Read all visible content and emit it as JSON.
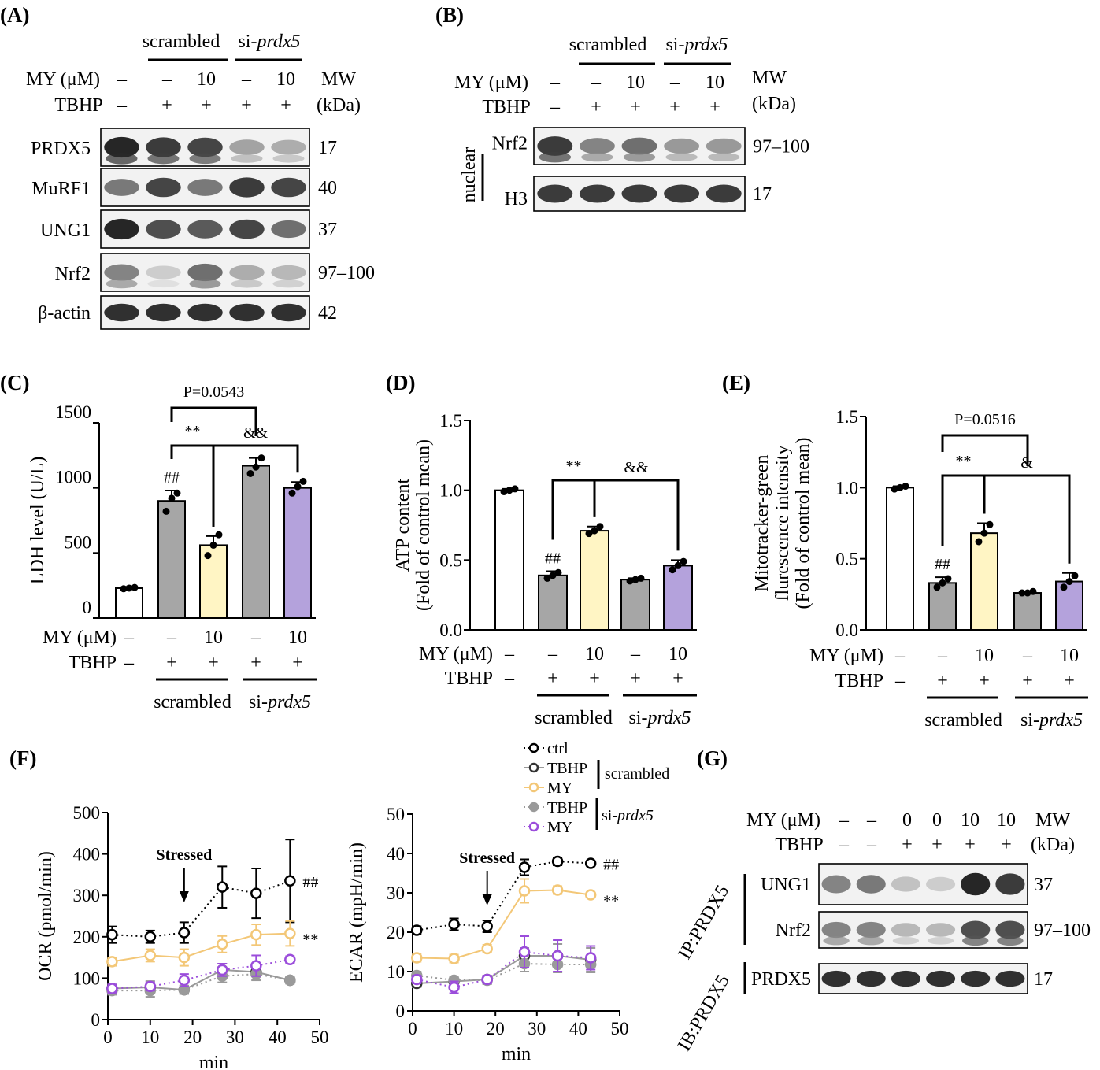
{
  "panels": {
    "A": {
      "label": "(A)",
      "groups": [
        "scrambled",
        "si-prdx5"
      ],
      "row_my_label": "MY (μM)",
      "row_my": [
        "–",
        "–",
        "10",
        "–",
        "10"
      ],
      "row_tbhp_label": "TBHP",
      "row_tbhp": [
        "–",
        "+",
        "+",
        "+",
        "+"
      ],
      "mw_header": [
        "MW",
        "(kDa)"
      ],
      "blots": [
        {
          "name": "PRDX5",
          "mw": "17",
          "intensity": [
            0.95,
            0.85,
            0.8,
            0.35,
            0.3
          ]
        },
        {
          "name": "MuRF1",
          "mw": "40",
          "intensity": [
            0.55,
            0.8,
            0.55,
            0.85,
            0.8
          ]
        },
        {
          "name": "UNG1",
          "mw": "37",
          "intensity": [
            0.95,
            0.75,
            0.7,
            0.8,
            0.6
          ]
        },
        {
          "name": "Nrf2",
          "mw": "97–100",
          "intensity": [
            0.5,
            0.15,
            0.6,
            0.3,
            0.25
          ]
        },
        {
          "name": "β-actin",
          "mw": "42",
          "intensity": [
            0.9,
            0.9,
            0.9,
            0.9,
            0.9
          ]
        }
      ]
    },
    "B": {
      "label": "(B)",
      "groups": [
        "scrambled",
        "si-prdx5"
      ],
      "row_my_label": "MY (μM)",
      "row_my": [
        "–",
        "–",
        "10",
        "–",
        "10"
      ],
      "row_tbhp_label": "TBHP",
      "row_tbhp": [
        "–",
        "+",
        "+",
        "+",
        "+"
      ],
      "mw_header": [
        "MW",
        "(kDa)"
      ],
      "fraction_label": "nuclear",
      "blots": [
        {
          "name": "Nrf2",
          "mw": "97–100",
          "intensity": [
            0.85,
            0.5,
            0.6,
            0.4,
            0.4
          ]
        },
        {
          "name": "H3",
          "mw": "17",
          "intensity": [
            0.85,
            0.85,
            0.85,
            0.85,
            0.85
          ]
        }
      ]
    },
    "G": {
      "label": "(G)",
      "row_my_label": "MY (μM)",
      "row_my": [
        "–",
        "–",
        "0",
        "0",
        "10",
        "10"
      ],
      "row_tbhp_label": "TBHP",
      "row_tbhp": [
        "–",
        "–",
        "+",
        "+",
        "+",
        "+"
      ],
      "mw_header": [
        "MW",
        "(kDa)"
      ],
      "ip_label": "IP:PRDX5",
      "ib_label": "IB:PRDX5",
      "blots": [
        {
          "name": "UNG1",
          "mw": "37",
          "intensity": [
            0.5,
            0.55,
            0.2,
            0.15,
            0.95,
            0.85
          ]
        },
        {
          "name": "Nrf2",
          "mw": "97–100",
          "intensity": [
            0.5,
            0.5,
            0.25,
            0.25,
            0.75,
            0.75
          ]
        },
        {
          "name": "PRDX5",
          "mw": "17",
          "intensity": [
            0.9,
            0.9,
            0.9,
            0.9,
            0.9,
            0.9
          ]
        }
      ]
    }
  },
  "bar_conditions": {
    "my_label": "MY (μM)",
    "my": [
      "–",
      "–",
      "10",
      "–",
      "10"
    ],
    "tbhp_label": "TBHP",
    "tbhp": [
      "–",
      "+",
      "+",
      "+",
      "+"
    ],
    "groups": [
      "scrambled",
      "si-prdx5"
    ],
    "group_prefix": "si-",
    "group_italic": "prdx5"
  },
  "colors": {
    "ctrl": "#ffffff",
    "tbhp": "#a6a6a6",
    "my": "#fff5c4",
    "si_tbhp": "#a6a6a6",
    "si_my": "#b4a2dc",
    "line_my": "#f3c777",
    "line_si_my": "#9b4ddb",
    "line_si_tbhp": "#9a9a9a"
  },
  "chart_data": [
    {
      "id": "C",
      "label": "(C)",
      "type": "bar",
      "categories": [
        "ctrl",
        "TBHP",
        "TBHP+MY",
        "si TBHP",
        "si TBHP+MY"
      ],
      "values": [
        230,
        900,
        560,
        1170,
        1000
      ],
      "errors": [
        10,
        80,
        70,
        60,
        45
      ],
      "points": [
        [
          225,
          230,
          235
        ],
        [
          820,
          920,
          960
        ],
        [
          480,
          560,
          640
        ],
        [
          1110,
          1160,
          1230
        ],
        [
          960,
          1010,
          1050
        ]
      ],
      "ylabel": "LDH level (U/L)",
      "ylim": [
        0,
        1500
      ],
      "yticks": [
        "0",
        "500",
        "1000",
        "1500"
      ],
      "annotations": {
        "hash": "##",
        "sig1": "**",
        "sig2": "&&",
        "pval": "P=0.0543"
      }
    },
    {
      "id": "D",
      "label": "(D)",
      "type": "bar",
      "categories": [
        "ctrl",
        "TBHP",
        "TBHP+MY",
        "si TBHP",
        "si TBHP+MY"
      ],
      "values": [
        1.0,
        0.39,
        0.71,
        0.36,
        0.46
      ],
      "errors": [
        0.01,
        0.03,
        0.03,
        0.01,
        0.04
      ],
      "points": [
        [
          0.99,
          1.0,
          1.01
        ],
        [
          0.37,
          0.39,
          0.41
        ],
        [
          0.69,
          0.71,
          0.74
        ],
        [
          0.35,
          0.36,
          0.37
        ],
        [
          0.43,
          0.46,
          0.49
        ]
      ],
      "ylabel": "ATP content",
      "ylabel2": "(Fold of control mean)",
      "ylim": [
        0,
        1.5
      ],
      "yticks": [
        "0.0",
        "0.5",
        "1.0",
        "1.5"
      ],
      "annotations": {
        "hash": "##",
        "sig1": "**",
        "sig2": "&&"
      }
    },
    {
      "id": "E",
      "label": "(E)",
      "type": "bar",
      "categories": [
        "ctrl",
        "TBHP",
        "TBHP+MY",
        "si TBHP",
        "si TBHP+MY"
      ],
      "values": [
        1.0,
        0.33,
        0.68,
        0.26,
        0.34
      ],
      "errors": [
        0.01,
        0.04,
        0.07,
        0.01,
        0.06
      ],
      "points": [
        [
          0.99,
          1.0,
          1.01
        ],
        [
          0.3,
          0.33,
          0.36
        ],
        [
          0.62,
          0.68,
          0.74
        ],
        [
          0.26,
          0.26,
          0.27
        ],
        [
          0.3,
          0.34,
          0.38
        ]
      ],
      "ylabel": "Mitotracker-green",
      "ylabel2": "flurescence intensity",
      "ylabel3": "(Fold of control mean)",
      "ylim": [
        0,
        1.5
      ],
      "yticks": [
        "0.0",
        "0.5",
        "1.0",
        "1.5"
      ],
      "annotations": {
        "hash": "##",
        "sig1": "**",
        "sig2": "&",
        "pval": "P=0.0516"
      }
    },
    {
      "id": "F-OCR",
      "label": "(F)",
      "type": "line",
      "x": [
        1,
        10,
        18,
        27,
        35,
        43
      ],
      "xlabel": "min",
      "ylabel": "OCR (pmol/min)",
      "xlim": [
        0,
        50
      ],
      "ylim": [
        0,
        500
      ],
      "xticks": [
        "0",
        "10",
        "20",
        "30",
        "40",
        "50"
      ],
      "yticks": [
        "0",
        "100",
        "200",
        "300",
        "400",
        "500"
      ],
      "annotation": "Stressed",
      "annotation_x": 18,
      "marks": {
        "hash": "##",
        "sig": "**"
      },
      "series": [
        {
          "key": "ctrl",
          "values": [
            205,
            200,
            210,
            320,
            305,
            335
          ],
          "errors": [
            20,
            15,
            25,
            50,
            60,
            100
          ],
          "style": "dotted",
          "color": "#000000",
          "marker": "open"
        },
        {
          "key": "tbhp",
          "values": [
            75,
            78,
            72,
            120,
            115,
            95
          ],
          "errors": [
            10,
            15,
            10,
            15,
            20,
            8
          ],
          "style": "solid",
          "color": "#9a9a9a",
          "marker": "open-dark"
        },
        {
          "key": "my",
          "values": [
            140,
            155,
            150,
            182,
            205,
            208
          ],
          "errors": [
            10,
            15,
            20,
            20,
            25,
            30
          ],
          "style": "solid",
          "color": "#f3c777",
          "marker": "open"
        },
        {
          "key": "si_tbhp",
          "values": [
            70,
            70,
            72,
            105,
            110,
            95
          ],
          "errors": [
            10,
            15,
            10,
            15,
            15,
            8
          ],
          "style": "dotted",
          "color": "#9a9a9a",
          "marker": "filled"
        },
        {
          "key": "si_my",
          "values": [
            75,
            80,
            95,
            120,
            130,
            145
          ],
          "errors": [
            10,
            10,
            15,
            15,
            25,
            8
          ],
          "style": "dotted",
          "color": "#9b4ddb",
          "marker": "open"
        }
      ]
    },
    {
      "id": "F-ECAR",
      "type": "line",
      "x": [
        1,
        10,
        18,
        27,
        35,
        43
      ],
      "xlabel": "min",
      "ylabel": "ECAR (mpH/min)",
      "xlim": [
        0,
        50
      ],
      "ylim": [
        0,
        50
      ],
      "xticks": [
        "0",
        "10",
        "20",
        "30",
        "40",
        "50"
      ],
      "yticks": [
        "0",
        "10",
        "20",
        "30",
        "40",
        "50"
      ],
      "annotation": "Stressed",
      "annotation_x": 18,
      "marks": {
        "hash": "##",
        "sig": "**"
      },
      "legend": {
        "items": [
          "ctrl",
          "TBHP",
          "MY",
          "TBHP",
          "MY"
        ],
        "group1": "scrambled",
        "group2_prefix": "si-",
        "group2_italic": "prdx5"
      },
      "series": [
        {
          "key": "ctrl",
          "values": [
            20.5,
            22,
            21.5,
            36.5,
            38,
            37.5
          ],
          "errors": [
            1,
            1.5,
            1.5,
            2,
            1,
            0.5
          ],
          "style": "dotted",
          "color": "#000000",
          "marker": "open"
        },
        {
          "key": "tbhp",
          "values": [
            7,
            7.5,
            8,
            14,
            14,
            13
          ],
          "errors": [
            1,
            1,
            1,
            2,
            3,
            3
          ],
          "style": "solid",
          "color": "#9a9a9a",
          "marker": "open-dark"
        },
        {
          "key": "my",
          "values": [
            13.5,
            13.3,
            15.8,
            30.5,
            30.7,
            29.5
          ],
          "errors": [
            1,
            1,
            1,
            3,
            1,
            0.5
          ],
          "style": "solid",
          "color": "#f3c777",
          "marker": "open"
        },
        {
          "key": "si_tbhp",
          "values": [
            9,
            7.8,
            7.8,
            12,
            11.8,
            11.8
          ],
          "errors": [
            1,
            1,
            1,
            2,
            2,
            2
          ],
          "style": "dotted",
          "color": "#9a9a9a",
          "marker": "filled"
        },
        {
          "key": "si_my",
          "values": [
            8,
            6,
            8,
            15,
            14,
            13.5
          ],
          "errors": [
            1,
            1.5,
            1,
            4,
            4,
            3
          ],
          "style": "dotted",
          "color": "#9b4ddb",
          "marker": "open"
        }
      ]
    }
  ]
}
